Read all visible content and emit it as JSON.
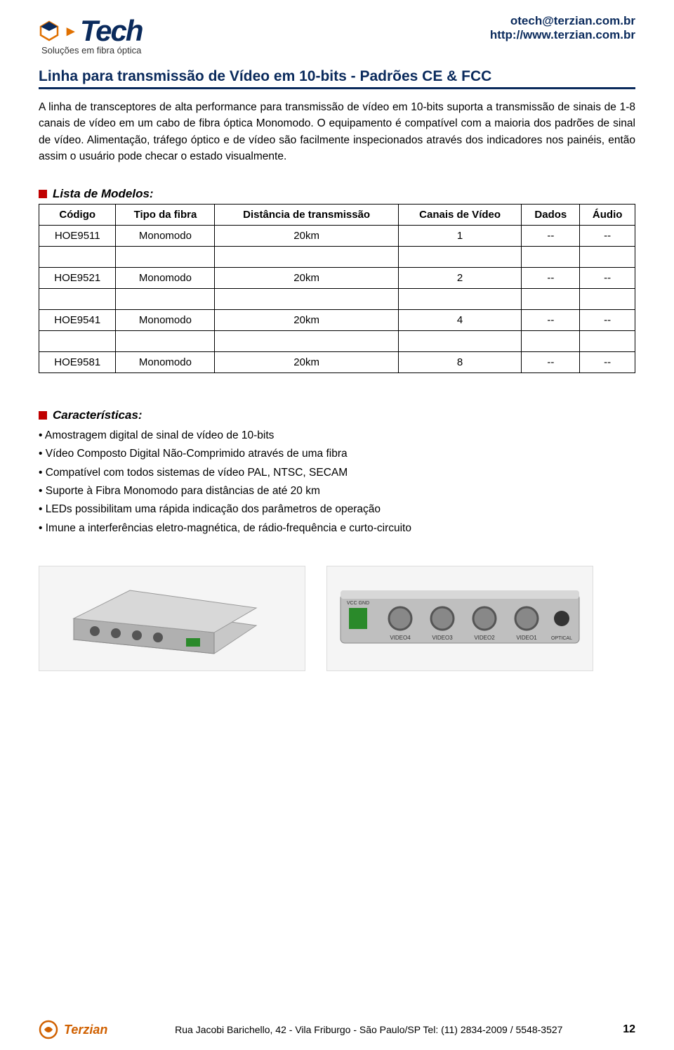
{
  "header": {
    "brand_prefix": "O",
    "brand_main": "Tech",
    "tagline": "Soluções em fibra óptica",
    "email": "otech@terzian.com.br",
    "url": "http://www.terzian.com.br"
  },
  "title": "Linha para transmissão de Vídeo em 10-bits - Padrões CE & FCC",
  "intro": "A linha de transceptores de alta performance para transmissão de vídeo em 10-bits suporta a transmissão de sinais de 1-8 canais de vídeo em um cabo de fibra óptica Monomodo. O equipamento é compatível com a maioria dos padrões de sinal de vídeo. Alimentação, tráfego óptico e de vídeo são facilmente inspecionados através dos indicadores nos painéis, então assim o usuário pode checar o estado visualmente.",
  "models_section": "Lista de Modelos:",
  "table": {
    "columns": [
      "Código",
      "Tipo da fibra",
      "Distância de transmissão",
      "Canais de Vídeo",
      "Dados",
      "Áudio"
    ],
    "rows": [
      [
        "HOE9511",
        "Monomodo",
        "20km",
        "1",
        "--",
        "--"
      ],
      [
        "HOE9521",
        "Monomodo",
        "20km",
        "2",
        "--",
        "--"
      ],
      [
        "HOE9541",
        "Monomodo",
        "20km",
        "4",
        "--",
        "--"
      ],
      [
        "HOE9581",
        "Monomodo",
        "20km",
        "8",
        "--",
        "--"
      ]
    ]
  },
  "features_section": "Características:",
  "features": [
    "• Amostragem digital de sinal de vídeo de 10-bits",
    "• Vídeo Composto Digital Não-Comprimido através de uma fibra",
    "• Compatível com todos sistemas de vídeo PAL, NTSC, SECAM",
    "• Suporte à Fibra Monomodo para distâncias de até 20 km",
    "• LEDs possibilitam uma rápida indicação dos parâmetros de operação",
    "• Imune a interferências eletro-magnética, de rádio-frequência e curto-circuito"
  ],
  "footer": {
    "brand": "Terzian",
    "address": "Rua Jacobi Barichello, 42 - Vila Friburgo - São Paulo/SP  Tel: (11) 2834-2009 / 5548-3527",
    "page": "12"
  },
  "colors": {
    "brand_blue": "#0a2a5c",
    "accent_red": "#c00000",
    "accent_orange": "#e07000",
    "footer_orange": "#d06000",
    "text": "#000000",
    "bg": "#ffffff"
  }
}
